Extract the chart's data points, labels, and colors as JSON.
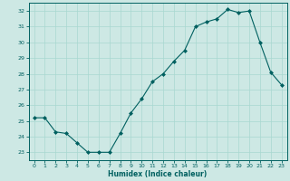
{
  "x": [
    0,
    1,
    2,
    3,
    4,
    5,
    6,
    7,
    8,
    9,
    10,
    11,
    12,
    13,
    14,
    15,
    16,
    17,
    18,
    19,
    20,
    21,
    22,
    23
  ],
  "y": [
    25.2,
    25.2,
    24.3,
    24.2,
    23.6,
    23.0,
    23.0,
    23.0,
    24.2,
    25.5,
    26.4,
    27.5,
    28.0,
    28.8,
    29.5,
    31.0,
    31.3,
    31.5,
    32.1,
    31.9,
    32.0,
    30.0,
    28.1,
    27.3
  ],
  "xlabel": "Humidex (Indice chaleur)",
  "bg_color": "#cde8e4",
  "line_color": "#006060",
  "grid_color": "#a8d8d0",
  "xlim": [
    -0.5,
    23.5
  ],
  "ylim": [
    22.5,
    32.5
  ],
  "yticks": [
    23,
    24,
    25,
    26,
    27,
    28,
    29,
    30,
    31,
    32
  ],
  "xticks": [
    0,
    1,
    2,
    3,
    4,
    5,
    6,
    7,
    8,
    9,
    10,
    11,
    12,
    13,
    14,
    15,
    16,
    17,
    18,
    19,
    20,
    21,
    22,
    23
  ]
}
